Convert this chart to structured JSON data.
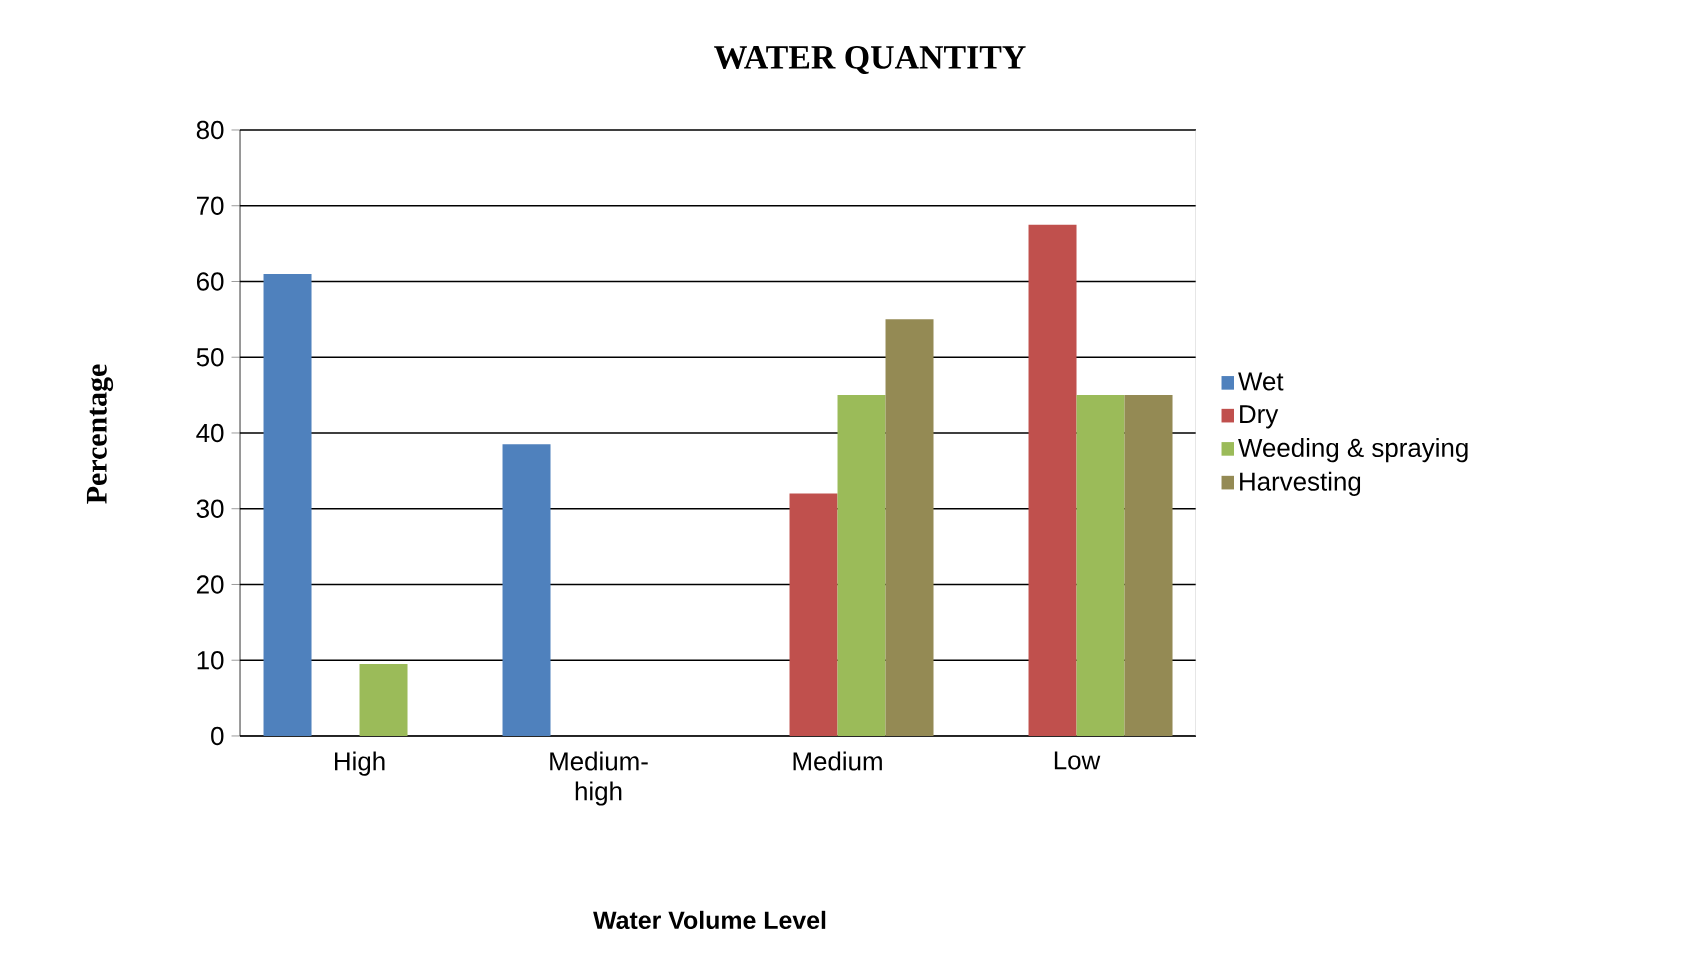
{
  "chart_data": {
    "type": "bar",
    "title": "WATER QUANTITY",
    "xlabel": "Water Volume Level",
    "ylabel": "Percentage",
    "categories": [
      "High",
      "Medium-high",
      "Medium",
      "Low"
    ],
    "series": [
      {
        "name": "Wet",
        "color": "#4f81bd",
        "values": [
          61,
          38.5,
          null,
          null
        ]
      },
      {
        "name": "Dry",
        "color": "#c0504d",
        "values": [
          null,
          null,
          32,
          67.5
        ]
      },
      {
        "name": "Weeding & spraying",
        "color": "#9bbb59",
        "values": [
          9.5,
          null,
          45,
          45
        ]
      },
      {
        "name": "Harvesting",
        "color": "#948a54",
        "values": [
          null,
          null,
          55,
          45
        ]
      }
    ],
    "ylim": [
      0,
      80
    ],
    "yticks": [
      0,
      10,
      20,
      30,
      40,
      50,
      60,
      70,
      80
    ],
    "grid": "y",
    "legend": "right"
  }
}
